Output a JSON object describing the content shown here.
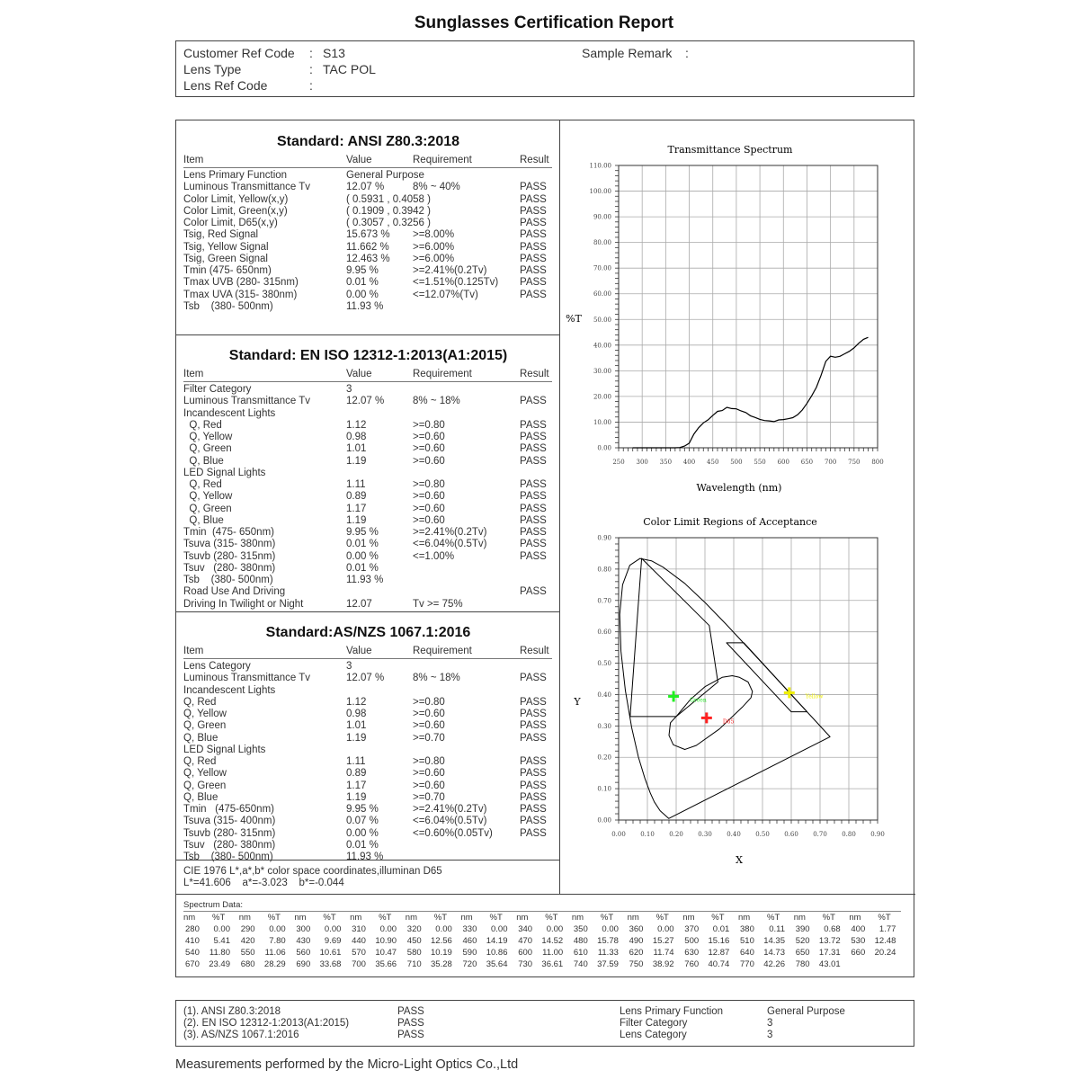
{
  "title": "Sunglasses Certification Report",
  "header": {
    "customer_ref_label": "Customer Ref Code",
    "customer_ref_value": "S13",
    "lens_type_label": "Lens Type",
    "lens_type_value": "TAC POL",
    "lens_ref_label": "Lens Ref Code",
    "lens_ref_value": "",
    "sample_remark_label": "Sample Remark",
    "sample_remark_value": "",
    "colon": ":"
  },
  "columns": [
    "Item",
    "Value",
    "Requirement",
    "Result"
  ],
  "sections": [
    {
      "title": "Standard: ANSI Z80.3:2018",
      "rows": [
        [
          "Lens Primary Function",
          "General Purpose",
          "",
          ""
        ],
        [
          "Luminous Transmittance Tv",
          "12.07 %",
          "8% ~ 40%",
          "PASS"
        ],
        [
          "Color Limit, Yellow(x,y)",
          "( 0.5931 , 0.4058 )",
          "",
          "PASS"
        ],
        [
          "Color Limit, Green(x,y)",
          "( 0.1909 , 0.3942 )",
          "",
          "PASS"
        ],
        [
          "Color Limit, D65(x,y)",
          "( 0.3057 , 0.3256 )",
          "",
          "PASS"
        ],
        [
          "Tsig, Red Signal",
          "15.673 %",
          ">=8.00%",
          "PASS"
        ],
        [
          "Tsig, Yellow Signal",
          "11.662 %",
          ">=6.00%",
          "PASS"
        ],
        [
          "Tsig, Green Signal",
          "12.463 %",
          ">=6.00%",
          "PASS"
        ],
        [
          "Tmin (475- 650nm)",
          "9.95 %",
          ">=2.41%(0.2Tv)",
          "PASS"
        ],
        [
          "Tmax UVB (280- 315nm)",
          "0.01 %",
          "<=1.51%(0.125Tv)",
          "PASS"
        ],
        [
          "Tmax UVA (315- 380nm)",
          "0.00 %",
          "<=12.07%(Tv)",
          "PASS"
        ],
        [
          "Tsb    (380- 500nm)",
          "11.93 %",
          "",
          ""
        ]
      ]
    },
    {
      "title": "Standard: EN ISO 12312-1:2013(A1:2015)",
      "rows": [
        [
          "Filter Category",
          "3",
          "",
          ""
        ],
        [
          "Luminous Transmittance Tv",
          "12.07 %",
          "8% ~ 18%",
          "PASS"
        ],
        [
          "Incandescent Lights",
          "",
          "",
          ""
        ],
        [
          "  Q, Red",
          "1.12",
          ">=0.80",
          "PASS"
        ],
        [
          "  Q, Yellow",
          "0.98",
          ">=0.60",
          "PASS"
        ],
        [
          "  Q, Green",
          "1.01",
          ">=0.60",
          "PASS"
        ],
        [
          "  Q, Blue",
          "1.19",
          ">=0.60",
          "PASS"
        ],
        [
          "LED Signal Lights",
          "",
          "",
          ""
        ],
        [
          "  Q, Red",
          "1.11",
          ">=0.80",
          "PASS"
        ],
        [
          "  Q, Yellow",
          "0.89",
          ">=0.60",
          "PASS"
        ],
        [
          "  Q, Green",
          "1.17",
          ">=0.60",
          "PASS"
        ],
        [
          "  Q, Blue",
          "1.19",
          ">=0.60",
          "PASS"
        ],
        [
          "Tmin  (475- 650nm)",
          "9.95 %",
          ">=2.41%(0.2Tv)",
          "PASS"
        ],
        [
          "Tsuva (315- 380nm)",
          "0.01 %",
          "<=6.04%(0.5Tv)",
          "PASS"
        ],
        [
          "Tsuvb (280- 315nm)",
          "0.00 %",
          "<=1.00%",
          "PASS"
        ],
        [
          "Tsuv   (280- 380nm)",
          "0.01 %",
          "",
          ""
        ],
        [
          "Tsb    (380- 500nm)",
          "11.93 %",
          "",
          ""
        ],
        [
          "Road Use And Driving",
          "",
          "",
          "PASS"
        ],
        [
          "Driving In Twilight or Night",
          "12.07",
          "Tv >= 75%",
          ""
        ]
      ]
    },
    {
      "title": "Standard:AS/NZS 1067.1:2016",
      "rows": [
        [
          "Lens Category",
          "3",
          "",
          ""
        ],
        [
          "Luminous Transmittance Tv",
          "12.07 %",
          "8% ~ 18%",
          "PASS"
        ],
        [
          "Incandescent Lights",
          "",
          "",
          ""
        ],
        [
          "Q, Red",
          "1.12",
          ">=0.80",
          "PASS"
        ],
        [
          "Q, Yellow",
          "0.98",
          ">=0.60",
          "PASS"
        ],
        [
          "Q, Green",
          "1.01",
          ">=0.60",
          "PASS"
        ],
        [
          "Q, Blue",
          "1.19",
          ">=0.70",
          "PASS"
        ],
        [
          "LED Signal Lights",
          "",
          "",
          ""
        ],
        [
          "Q, Red",
          "1.11",
          ">=0.80",
          "PASS"
        ],
        [
          "Q, Yellow",
          "0.89",
          ">=0.60",
          "PASS"
        ],
        [
          "Q, Green",
          "1.17",
          ">=0.60",
          "PASS"
        ],
        [
          "Q, Blue",
          "1.19",
          ">=0.70",
          "PASS"
        ],
        [
          "Tmin   (475-650nm)",
          "9.95 %",
          ">=2.41%(0.2Tv)",
          "PASS"
        ],
        [
          "Tsuva (315- 400nm)",
          "0.07 %",
          "<=6.04%(0.5Tv)",
          "PASS"
        ],
        [
          "Tsuvb (280- 315nm)",
          "0.00 %",
          "<=0.60%(0.05Tv)",
          "PASS"
        ],
        [
          "Tsuv   (280- 380nm)",
          "0.01 %",
          "",
          ""
        ],
        [
          "Tsb    (380- 500nm)",
          "11.93 %",
          "",
          ""
        ]
      ]
    }
  ],
  "cie": {
    "label": "CIE 1976 L*,a*,b* color space coordinates,illuminan D65",
    "values": "L*=41.606    a*=-3.023    b*=-0.044"
  },
  "spectrum_table": {
    "label": "Spectrum Data:",
    "col_nm": "nm",
    "col_t": "%T",
    "rows": [
      [
        [
          "280",
          "0.00"
        ],
        [
          "290",
          "0.00"
        ],
        [
          "300",
          "0.00"
        ],
        [
          "310",
          "0.00"
        ],
        [
          "320",
          "0.00"
        ],
        [
          "330",
          "0.00"
        ],
        [
          "340",
          "0.00"
        ],
        [
          "350",
          "0.00"
        ],
        [
          "360",
          "0.00"
        ],
        [
          "370",
          "0.01"
        ],
        [
          "380",
          "0.11"
        ],
        [
          "390",
          "0.68"
        ],
        [
          "400",
          "1.77"
        ]
      ],
      [
        [
          "410",
          "5.41"
        ],
        [
          "420",
          "7.80"
        ],
        [
          "430",
          "9.69"
        ],
        [
          "440",
          "10.90"
        ],
        [
          "450",
          "12.56"
        ],
        [
          "460",
          "14.19"
        ],
        [
          "470",
          "14.52"
        ],
        [
          "480",
          "15.78"
        ],
        [
          "490",
          "15.27"
        ],
        [
          "500",
          "15.16"
        ],
        [
          "510",
          "14.35"
        ],
        [
          "520",
          "13.72"
        ],
        [
          "530",
          "12.48"
        ]
      ],
      [
        [
          "540",
          "11.80"
        ],
        [
          "550",
          "11.06"
        ],
        [
          "560",
          "10.61"
        ],
        [
          "570",
          "10.47"
        ],
        [
          "580",
          "10.19"
        ],
        [
          "590",
          "10.86"
        ],
        [
          "600",
          "11.00"
        ],
        [
          "610",
          "11.33"
        ],
        [
          "620",
          "11.74"
        ],
        [
          "630",
          "12.87"
        ],
        [
          "640",
          "14.73"
        ],
        [
          "650",
          "17.31"
        ],
        [
          "660",
          "20.24"
        ]
      ],
      [
        [
          "670",
          "23.49"
        ],
        [
          "680",
          "28.29"
        ],
        [
          "690",
          "33.68"
        ],
        [
          "700",
          "35.66"
        ],
        [
          "710",
          "35.28"
        ],
        [
          "720",
          "35.64"
        ],
        [
          "730",
          "36.61"
        ],
        [
          "740",
          "37.59"
        ],
        [
          "750",
          "38.92"
        ],
        [
          "760",
          "40.74"
        ],
        [
          "770",
          "42.26"
        ],
        [
          "780",
          "43.01"
        ]
      ]
    ]
  },
  "summary": {
    "rows": [
      [
        "(1). ANSI Z80.3:2018",
        "PASS",
        "Lens Primary Function",
        "General Purpose"
      ],
      [
        "(2). EN ISO 12312-1:2013(A1:2015)",
        "PASS",
        "Filter Category",
        "3"
      ],
      [
        "(3). AS/NZS 1067.1:2016",
        "PASS",
        "Lens Category",
        "3"
      ]
    ]
  },
  "footer": "Measurements performed by the Micro-Light Optics Co.,Ltd",
  "chart_data": [
    {
      "type": "line",
      "title": "Transmittance Spectrum",
      "xlabel": "Wavelength (nm)",
      "ylabel": "%T",
      "xlim": [
        250,
        800
      ],
      "ylim": [
        0,
        110
      ],
      "xticks": [
        "250",
        "300",
        "350",
        "400",
        "450",
        "500",
        "550",
        "600",
        "650",
        "700",
        "750",
        "800"
      ],
      "yticks": [
        "0.00",
        "10.00",
        "20.00",
        "30.00",
        "40.00",
        "50.00",
        "60.00",
        "70.00",
        "80.00",
        "90.00",
        "100.00",
        "110.00"
      ],
      "grid": true,
      "x": [
        280,
        290,
        300,
        310,
        320,
        330,
        340,
        350,
        360,
        370,
        380,
        390,
        400,
        410,
        420,
        430,
        440,
        450,
        460,
        470,
        480,
        490,
        500,
        510,
        520,
        530,
        540,
        550,
        560,
        570,
        580,
        590,
        600,
        610,
        620,
        630,
        640,
        650,
        660,
        670,
        680,
        690,
        700,
        710,
        720,
        730,
        740,
        750,
        760,
        770,
        780
      ],
      "y": [
        0,
        0,
        0,
        0,
        0,
        0,
        0,
        0,
        0,
        0.01,
        0.11,
        0.68,
        1.77,
        5.41,
        7.8,
        9.69,
        10.9,
        12.56,
        14.19,
        14.52,
        15.78,
        15.27,
        15.16,
        14.35,
        13.72,
        12.48,
        11.8,
        11.06,
        10.61,
        10.47,
        10.19,
        10.86,
        11.0,
        11.33,
        11.74,
        12.87,
        14.73,
        17.31,
        20.24,
        23.49,
        28.29,
        33.68,
        35.66,
        35.28,
        35.64,
        36.61,
        37.59,
        38.92,
        40.74,
        42.26,
        43.01
      ],
      "color": "#000000"
    },
    {
      "type": "scatter",
      "title": "Color Limit Regions of Acceptance",
      "xlabel": "X",
      "ylabel": "Y",
      "xlim": [
        0,
        0.9
      ],
      "ylim": [
        0,
        0.9
      ],
      "xticks": [
        "0.00",
        "0.10",
        "0.20",
        "0.30",
        "0.40",
        "0.50",
        "0.60",
        "0.70",
        "0.80",
        "0.90"
      ],
      "yticks": [
        "0.00",
        "0.10",
        "0.20",
        "0.30",
        "0.40",
        "0.50",
        "0.60",
        "0.70",
        "0.80",
        "0.90"
      ],
      "grid": true,
      "points": [
        {
          "name": "Green",
          "x": 0.1909,
          "y": 0.3942,
          "color": "#22ee22"
        },
        {
          "name": "D65",
          "x": 0.3057,
          "y": 0.3256,
          "color": "#ff2020"
        },
        {
          "name": "Yellow",
          "x": 0.5931,
          "y": 0.4058,
          "color": "#eeee00"
        }
      ],
      "regions": {
        "spectral_locus": [
          [
            0.1741,
            0.005
          ],
          [
            0.144,
            0.0297
          ],
          [
            0.1241,
            0.0578
          ],
          [
            0.1096,
            0.0868
          ],
          [
            0.0913,
            0.1327
          ],
          [
            0.0687,
            0.2007
          ],
          [
            0.0454,
            0.295
          ],
          [
            0.0235,
            0.4127
          ],
          [
            0.0082,
            0.5384
          ],
          [
            0.0039,
            0.6548
          ],
          [
            0.0139,
            0.7502
          ],
          [
            0.0389,
            0.812
          ],
          [
            0.0743,
            0.8338
          ],
          [
            0.1142,
            0.8262
          ],
          [
            0.1547,
            0.8059
          ],
          [
            0.2296,
            0.7543
          ],
          [
            0.3016,
            0.6923
          ],
          [
            0.3731,
            0.6245
          ],
          [
            0.4441,
            0.5547
          ],
          [
            0.5125,
            0.4866
          ],
          [
            0.5752,
            0.4242
          ],
          [
            0.627,
            0.3725
          ],
          [
            0.6658,
            0.334
          ],
          [
            0.6915,
            0.3083
          ],
          [
            0.719,
            0.2809
          ],
          [
            0.7347,
            0.2653
          ]
        ],
        "green": [
          [
            0.08,
            0.834
          ],
          [
            0.04,
            0.33
          ],
          [
            0.2,
            0.33
          ],
          [
            0.345,
            0.44
          ],
          [
            0.315,
            0.62
          ]
        ],
        "yellow": [
          [
            0.375,
            0.565
          ],
          [
            0.435,
            0.565
          ],
          [
            0.655,
            0.345
          ],
          [
            0.6,
            0.345
          ]
        ],
        "d65": [
          [
            0.2,
            0.33
          ],
          [
            0.18,
            0.31
          ],
          [
            0.175,
            0.27
          ],
          [
            0.19,
            0.24
          ],
          [
            0.23,
            0.225
          ],
          [
            0.27,
            0.238
          ],
          [
            0.35,
            0.29
          ],
          [
            0.43,
            0.36
          ],
          [
            0.46,
            0.39
          ],
          [
            0.465,
            0.41
          ],
          [
            0.45,
            0.44
          ],
          [
            0.42,
            0.455
          ],
          [
            0.395,
            0.46
          ],
          [
            0.36,
            0.455
          ],
          [
            0.3,
            0.425
          ],
          [
            0.25,
            0.385
          ]
        ]
      }
    }
  ]
}
